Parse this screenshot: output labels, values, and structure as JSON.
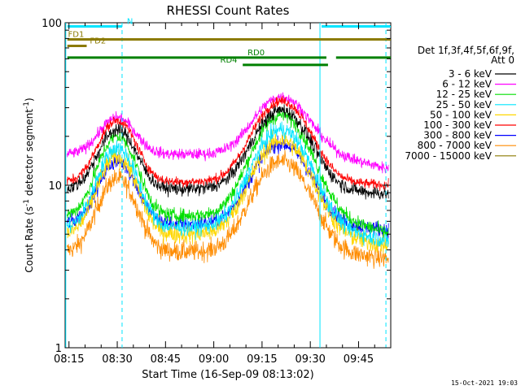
{
  "chart_data": {
    "type": "line",
    "title": "RHESSI Count Rates",
    "xlabel": "Start Time (16-Sep-09 08:13:02)",
    "ylabel_prefix": "Count Rate (s",
    "ylabel_sup1": "-1",
    "ylabel_mid": " detector segment",
    "ylabel_sup2": "-1",
    "ylabel_suffix": ")",
    "ylabel_full": "Count Rate (s-1 detector segment-1)",
    "y_scale": "log",
    "ylim": [
      1,
      100
    ],
    "xlim_minutes": [
      -1.2,
      100.0
    ],
    "x_ticks": [
      {
        "min": 0,
        "label": "08:15"
      },
      {
        "min": 15,
        "label": "08:30"
      },
      {
        "min": 30,
        "label": "08:45"
      },
      {
        "min": 45,
        "label": "09:00"
      },
      {
        "min": 60,
        "label": "09:15"
      },
      {
        "min": 75,
        "label": "09:30"
      },
      {
        "min": 90,
        "label": "09:45"
      }
    ],
    "y_ticks": [
      {
        "value": 1,
        "label": "1"
      },
      {
        "value": 10,
        "label": "10"
      },
      {
        "value": 100,
        "label": "100"
      }
    ],
    "legend_header_1": "Det 1f,3f,4f,5f,6f,9f,",
    "legend_header_2": "Att 0",
    "legend_position": "right",
    "series": [
      {
        "name": "3 - 6 keV",
        "color": "#000000",
        "base": 9.5,
        "p1": 22,
        "p2": 29,
        "noise": 0.05,
        "end": 8.8
      },
      {
        "name": "6 - 12 keV",
        "color": "#ff00ff",
        "base": 15.5,
        "p1": 26,
        "p2": 35,
        "noise": 0.04,
        "end": 12.5
      },
      {
        "name": "12 - 25 keV",
        "color": "#00e000",
        "base": 6.5,
        "p1": 20,
        "p2": 27,
        "noise": 0.05,
        "end": 5.0
      },
      {
        "name": "25 - 50 keV",
        "color": "#00e5ff",
        "base": 5.5,
        "p1": 17,
        "p2": 22,
        "noise": 0.06,
        "end": 4.5
      },
      {
        "name": "50 - 100 keV",
        "color": "#ffd700",
        "base": 5.0,
        "p1": 15,
        "p2": 19,
        "noise": 0.07,
        "end": 4.2
      },
      {
        "name": "100 - 300 keV",
        "color": "#ff0000",
        "base": 10.5,
        "p1": 25,
        "p2": 33,
        "noise": 0.035,
        "end": 10.0
      },
      {
        "name": "300 - 800 keV",
        "color": "#0000ff",
        "base": 5.8,
        "p1": 14,
        "p2": 18,
        "noise": 0.055,
        "end": 5.3
      },
      {
        "name": "800 - 7000 keV",
        "color": "#ff8c00",
        "base": 3.9,
        "p1": 11,
        "p2": 14,
        "noise": 0.07,
        "end": 3.5
      },
      {
        "name": "7000 - 15000 keV",
        "color": "#8b7a00",
        "base": null
      }
    ],
    "peaks_minutes": [
      15,
      66
    ],
    "flags": [
      {
        "label": "N",
        "color": "#00e5ff",
        "y_value": 95,
        "segments": [
          [
            -0.5,
            16.5
          ],
          [
            78.5,
            100.0
          ]
        ],
        "label_at": 18
      },
      {
        "label": "FD1",
        "color": "#8b7a00",
        "y_value": 79,
        "segments": [
          [
            -0.5,
            100.0
          ]
        ],
        "label_at": -0.3
      },
      {
        "label": "FD2",
        "color": "#8b7a00",
        "y_value": 72,
        "segments": [
          [
            -0.5,
            5.5
          ]
        ],
        "label_at": 6.5
      },
      {
        "label": "RD0",
        "color": "#008000",
        "y_value": 61,
        "segments": [
          [
            -0.5,
            80.0
          ],
          [
            83.0,
            100.0
          ]
        ],
        "label_at": 55.5
      },
      {
        "label": "RD4",
        "color": "#008000",
        "y_value": 55,
        "segments": [
          [
            54.0,
            80.5
          ]
        ],
        "label_at": 47
      }
    ],
    "vlines_solid": [
      -1.0,
      78.0
    ],
    "vlines_dashed": [
      16.5,
      98.5
    ]
  },
  "footer": {
    "timestamp": "15-Oct-2021 19:03"
  }
}
